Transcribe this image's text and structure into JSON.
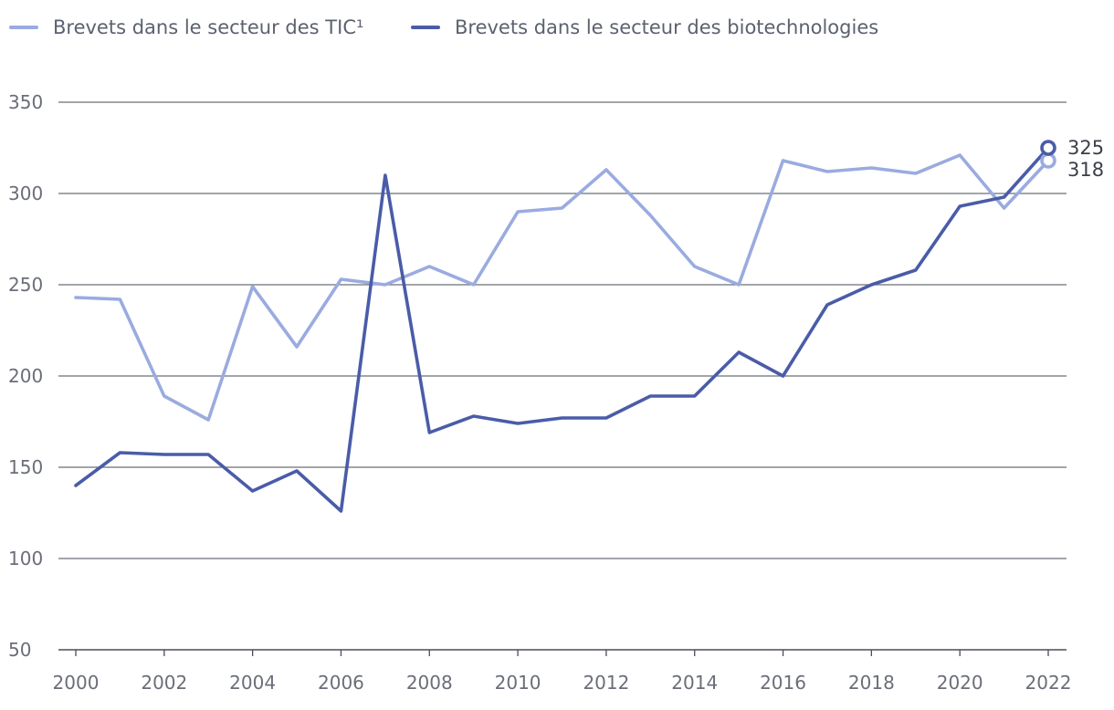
{
  "chart_data": {
    "type": "line",
    "legend_position": "top-left",
    "grid": "horizontal",
    "x": [
      2000,
      2001,
      2002,
      2003,
      2004,
      2005,
      2006,
      2007,
      2008,
      2009,
      2010,
      2011,
      2012,
      2013,
      2014,
      2015,
      2016,
      2017,
      2018,
      2019,
      2020,
      2021,
      2022
    ],
    "x_ticks": [
      "2000",
      "2002",
      "2004",
      "2006",
      "2008",
      "2010",
      "2012",
      "2014",
      "2016",
      "2018",
      "2020",
      "2022"
    ],
    "y_ticks": [
      "350",
      "300",
      "250",
      "200",
      "150",
      "100",
      "50"
    ],
    "ylim": [
      50,
      350
    ],
    "series": [
      {
        "name": "Brevets dans le secteur des TIC¹",
        "color": "#9aabe0",
        "values": [
          243,
          242,
          189,
          176,
          249,
          216,
          253,
          250,
          260,
          250,
          290,
          292,
          313,
          288,
          260,
          250,
          318,
          312,
          314,
          311,
          321,
          292,
          318
        ],
        "end_label": "318"
      },
      {
        "name": "Brevets dans le secteur des biotechnologies",
        "color": "#4a5ca8",
        "values": [
          140,
          158,
          157,
          157,
          137,
          148,
          126,
          310,
          169,
          178,
          174,
          177,
          177,
          189,
          189,
          213,
          200,
          239,
          250,
          258,
          293,
          298,
          325
        ],
        "end_label": "325"
      }
    ]
  }
}
